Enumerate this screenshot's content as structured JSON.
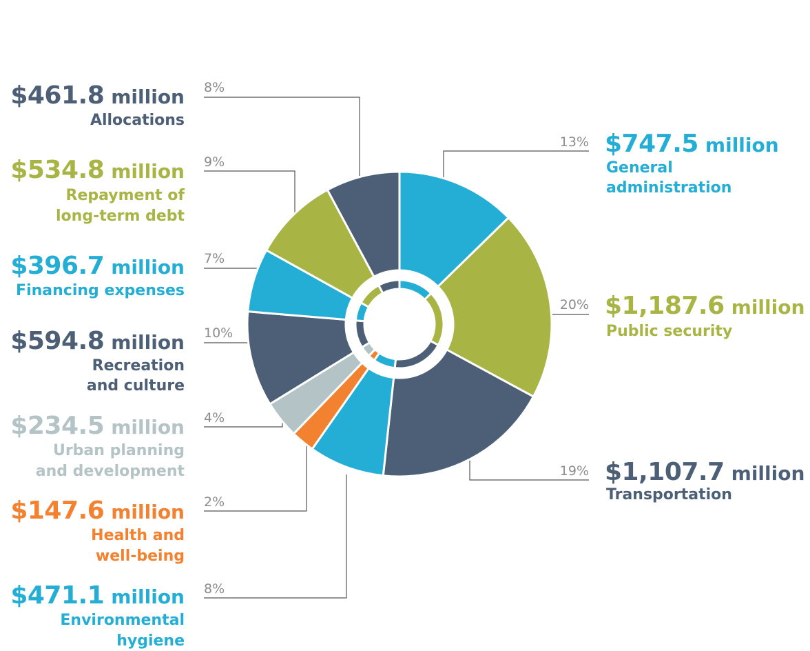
{
  "chart_data": {
    "type": "pie",
    "style": "donut",
    "slices": [
      {
        "label": "General administration",
        "label_lines": [
          "General",
          "administration"
        ],
        "amount": "$747.5",
        "unit": "million",
        "pct": "13%",
        "value": 747.5,
        "color": "#25aed5"
      },
      {
        "label": "Public security",
        "label_lines": [
          "Public security"
        ],
        "amount": "$1,187.6",
        "unit": "million",
        "pct": "20%",
        "value": 1187.6,
        "color": "#a8b545"
      },
      {
        "label": "Transportation",
        "label_lines": [
          "Transportation"
        ],
        "amount": "$1,107.7",
        "unit": "million",
        "pct": "19%",
        "value": 1107.7,
        "color": "#4c5f76"
      },
      {
        "label": "Environmental hygiene",
        "label_lines": [
          "Environmental",
          "hygiene"
        ],
        "amount": "$471.1",
        "unit": "million",
        "pct": "8%",
        "value": 471.1,
        "color": "#25aed5"
      },
      {
        "label": "Health and well-being",
        "label_lines": [
          "Health and",
          "well-being"
        ],
        "amount": "$147.6",
        "unit": "million",
        "pct": "2%",
        "value": 147.6,
        "color": "#f28230"
      },
      {
        "label": "Urban planning and development",
        "label_lines": [
          "Urban planning",
          "and development"
        ],
        "amount": "$234.5",
        "unit": "million",
        "pct": "4%",
        "value": 234.5,
        "color": "#b4c3c5"
      },
      {
        "label": "Recreation and culture",
        "label_lines": [
          "Recreation",
          "and culture"
        ],
        "amount": "$594.8",
        "unit": "million",
        "pct": "10%",
        "value": 594.8,
        "color": "#4c5f76"
      },
      {
        "label": "Financing expenses",
        "label_lines": [
          "Financing expenses"
        ],
        "amount": "$396.7",
        "unit": "million",
        "pct": "7%",
        "value": 396.7,
        "color": "#25aed5"
      },
      {
        "label": "Repayment of long-term debt",
        "label_lines": [
          "Repayment of",
          "long-term debt"
        ],
        "amount": "$534.8",
        "unit": "million",
        "pct": "9%",
        "value": 534.8,
        "color": "#a8b545"
      },
      {
        "label": "Allocations",
        "label_lines": [
          "Allocations"
        ],
        "amount": "$461.8",
        "unit": "million",
        "pct": "8%",
        "value": 461.8,
        "color": "#4c5f76"
      }
    ]
  }
}
